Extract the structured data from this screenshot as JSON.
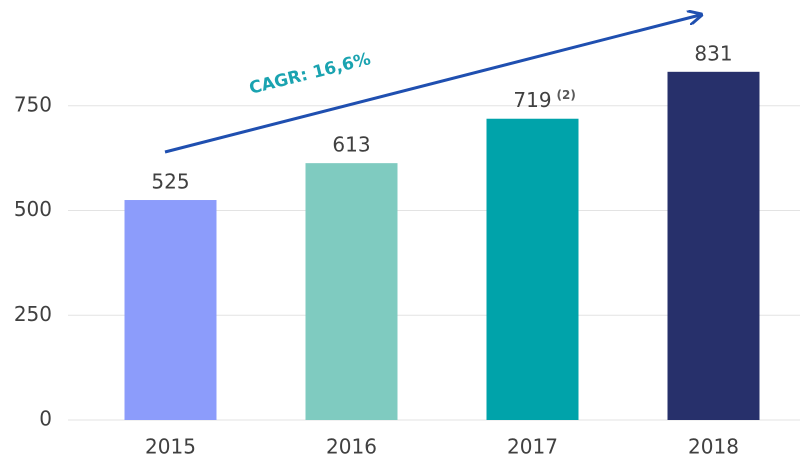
{
  "chart_data": {
    "type": "bar",
    "categories": [
      "2015",
      "2016",
      "2017",
      "2018"
    ],
    "values": [
      525,
      613,
      719,
      831
    ],
    "colors": [
      "#8c9cfb",
      "#7fcbc0",
      "#00a3aa",
      "#27306b"
    ],
    "ylim": [
      0,
      1000
    ],
    "yticks": [
      0,
      250,
      500,
      750
    ],
    "grid": true,
    "annotations": [
      "CAGR: 16,6%",
      "(2)"
    ]
  }
}
